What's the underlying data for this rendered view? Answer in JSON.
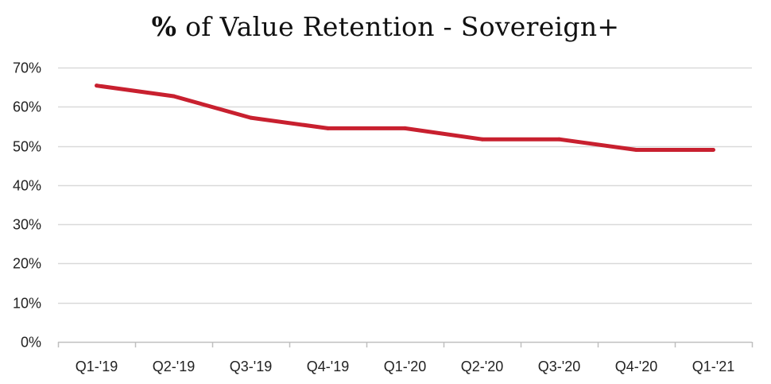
{
  "chart_data": {
    "type": "line",
    "title_prefix": "%",
    "title_rest": " of Value Retention - Sovereign+",
    "categories": [
      "Q1-'19",
      "Q2-'19",
      "Q3-'19",
      "Q4-'19",
      "Q1-'20",
      "Q2-'20",
      "Q3-'20",
      "Q4-'20",
      "Q1-'21"
    ],
    "series": [
      {
        "values": [
          65.4,
          62.7,
          57.2,
          54.5,
          54.5,
          51.7,
          51.7,
          49.0,
          49.0
        ],
        "color": "#c8202f"
      }
    ],
    "ylim": [
      0,
      70
    ],
    "yticks": [
      0,
      10,
      20,
      30,
      40,
      50,
      60,
      70
    ],
    "ytick_format": "percent",
    "grid": true,
    "legend": "none",
    "xlabel": "",
    "ylabel": ""
  },
  "colors": {
    "grid": "#d9d9d9",
    "axis": "#bfbfbf"
  }
}
